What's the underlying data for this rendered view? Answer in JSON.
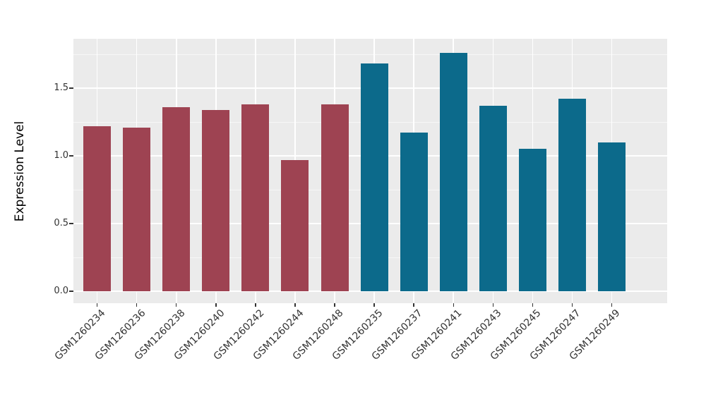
{
  "chart_data": {
    "type": "bar",
    "title": "",
    "xlabel": "",
    "ylabel": "Expression Level",
    "categories": [
      "GSM1260234",
      "GSM1260236",
      "GSM1260238",
      "GSM1260240",
      "GSM1260242",
      "GSM1260244",
      "GSM1260248",
      "GSM1260235",
      "GSM1260237",
      "GSM1260241",
      "GSM1260243",
      "GSM1260245",
      "GSM1260247",
      "GSM1260249"
    ],
    "values": [
      1.22,
      1.21,
      1.36,
      1.34,
      1.38,
      0.97,
      1.38,
      1.68,
      1.17,
      1.76,
      1.37,
      1.05,
      1.42,
      1.1
    ],
    "bar_colors": [
      "#9E4352",
      "#9E4352",
      "#9E4352",
      "#9E4352",
      "#9E4352",
      "#9E4352",
      "#9E4352",
      "#0C6A8B",
      "#0C6A8B",
      "#0C6A8B",
      "#0C6A8B",
      "#0C6A8B",
      "#0C6A8B",
      "#0C6A8B"
    ],
    "yticks": {
      "values": [
        0,
        0.5,
        1.0,
        1.5
      ],
      "labels": [
        "0.0",
        "0.5",
        "1.0",
        "1.5"
      ]
    },
    "minor_gridlines": [
      0.25,
      0.75,
      1.25,
      1.75
    ],
    "ylim": [
      0,
      1.86
    ],
    "x_label_rotation_deg": -45,
    "grid": true,
    "legend": "none",
    "style": {
      "figure_background": "#FFFFFF",
      "panel_background": "#EBEBEB",
      "gridline_color": "#FFFFFF",
      "tick_mark_color": "#333333",
      "axis_text_color": "#333333",
      "axis_title_color": "#000000",
      "red_group_color": "#9E4352",
      "teal_group_color": "#0C6A8B"
    }
  }
}
